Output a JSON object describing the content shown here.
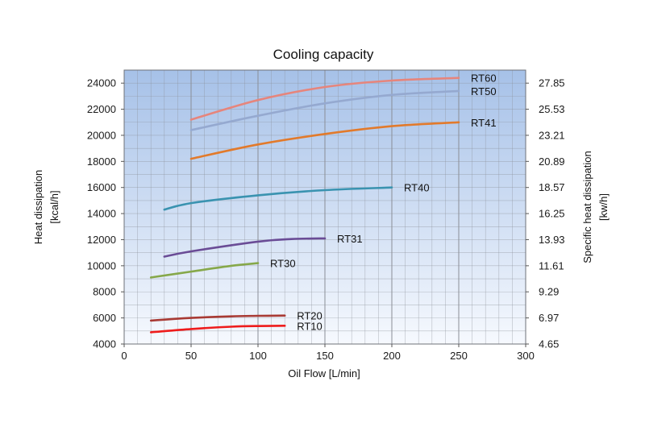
{
  "chart_data": {
    "type": "line",
    "title": "Cooling capacity",
    "xlabel": "Oil Flow [L/min]",
    "ylabel_line1": "Heat dissipation",
    "ylabel_line2": "[kcal/h]",
    "y2label_line1": "Specific heat dissipation",
    "y2label_line2": "[kw/h]",
    "xlim": [
      0,
      300
    ],
    "ylim": [
      4000,
      25000
    ],
    "x_ticks": [
      0,
      50,
      100,
      150,
      200,
      250,
      300
    ],
    "y_ticks": [
      4000,
      6000,
      8000,
      10000,
      12000,
      14000,
      16000,
      18000,
      20000,
      22000,
      24000
    ],
    "y2_tick_labels": [
      "4.65",
      "6.97",
      "9.29",
      "11.61",
      "13.93",
      "16.25",
      "18.57",
      "20.89",
      "23.21",
      "25.53",
      "27.85"
    ],
    "grid": true,
    "colors": {
      "plot_top": "#a6c1e8",
      "plot_bottom": "#f6f9fe",
      "grid": "#8a8e96"
    },
    "series": [
      {
        "name": "RT60",
        "color": "#e6857c",
        "points": [
          [
            50,
            21200
          ],
          [
            100,
            22700
          ],
          [
            150,
            23700
          ],
          [
            200,
            24200
          ],
          [
            250,
            24400
          ]
        ]
      },
      {
        "name": "RT50",
        "color": "#95a9d0",
        "points": [
          [
            50,
            20400
          ],
          [
            100,
            21500
          ],
          [
            150,
            22450
          ],
          [
            200,
            23100
          ],
          [
            250,
            23400
          ]
        ]
      },
      {
        "name": "RT41",
        "color": "#e27a2b",
        "points": [
          [
            50,
            18200
          ],
          [
            100,
            19300
          ],
          [
            150,
            20100
          ],
          [
            200,
            20700
          ],
          [
            250,
            21000
          ]
        ]
      },
      {
        "name": "RT40",
        "color": "#3a93b0",
        "points": [
          [
            30,
            14300
          ],
          [
            50,
            14800
          ],
          [
            100,
            15400
          ],
          [
            150,
            15800
          ],
          [
            200,
            16000
          ]
        ]
      },
      {
        "name": "RT31",
        "color": "#6a4c96",
        "points": [
          [
            30,
            10700
          ],
          [
            50,
            11100
          ],
          [
            100,
            11850
          ],
          [
            125,
            12050
          ],
          [
            150,
            12100
          ]
        ]
      },
      {
        "name": "RT30",
        "color": "#86a84a",
        "points": [
          [
            20,
            9100
          ],
          [
            50,
            9550
          ],
          [
            80,
            10000
          ],
          [
            100,
            10200
          ]
        ]
      },
      {
        "name": "RT20",
        "color": "#a83a34",
        "points": [
          [
            20,
            5800
          ],
          [
            50,
            6000
          ],
          [
            80,
            6120
          ],
          [
            100,
            6160
          ],
          [
            120,
            6180
          ]
        ]
      },
      {
        "name": "RT10",
        "color": "#ee1c1c",
        "points": [
          [
            20,
            4900
          ],
          [
            50,
            5150
          ],
          [
            80,
            5330
          ],
          [
            100,
            5380
          ],
          [
            120,
            5400
          ]
        ]
      }
    ]
  }
}
